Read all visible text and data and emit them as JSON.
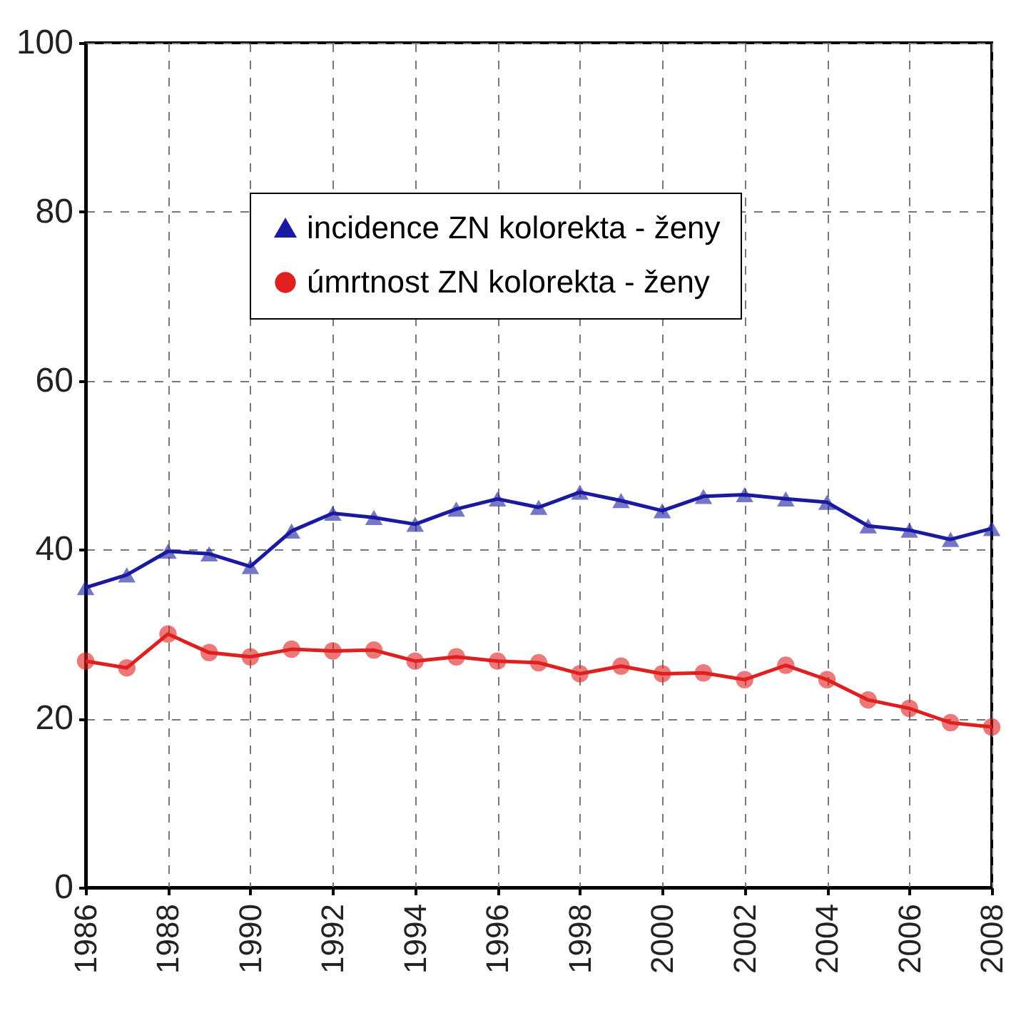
{
  "chart_data": {
    "type": "line",
    "x": [
      1986,
      1987,
      1988,
      1989,
      1990,
      1991,
      1992,
      1993,
      1994,
      1995,
      1996,
      1997,
      1998,
      1999,
      2000,
      2001,
      2002,
      2003,
      2004,
      2005,
      2006,
      2007,
      2008
    ],
    "series": [
      {
        "name": "incidence ZN kolorekta - ženy",
        "color": "#1a1aa0",
        "marker": "triangle",
        "values": [
          35.5,
          37,
          39.8,
          39.5,
          38,
          42.2,
          44.3,
          43.8,
          43,
          44.8,
          46,
          45,
          46.8,
          45.8,
          44.6,
          46.3,
          46.5,
          46,
          45.6,
          42.8,
          42.3,
          41.2,
          42.5
        ]
      },
      {
        "name": "úmrtnost ZN kolorekta - ženy",
        "color": "#e02020",
        "marker": "circle",
        "values": [
          26.8,
          26,
          30,
          27.8,
          27.3,
          28.2,
          28,
          28.1,
          26.8,
          27.3,
          26.8,
          26.6,
          25.3,
          26.2,
          25.3,
          25.4,
          24.6,
          26.3,
          24.6,
          22.2,
          21.2,
          19.5,
          19
        ]
      }
    ],
    "xlim": [
      1986,
      2008
    ],
    "xticks": [
      1986,
      1988,
      1990,
      1992,
      1994,
      1996,
      1998,
      2000,
      2002,
      2004,
      2006,
      2008
    ],
    "ylim": [
      0,
      100
    ],
    "yticks": [
      0,
      20,
      40,
      60,
      80,
      100
    ],
    "grid": true,
    "legend": "top",
    "line_style": "solid"
  }
}
